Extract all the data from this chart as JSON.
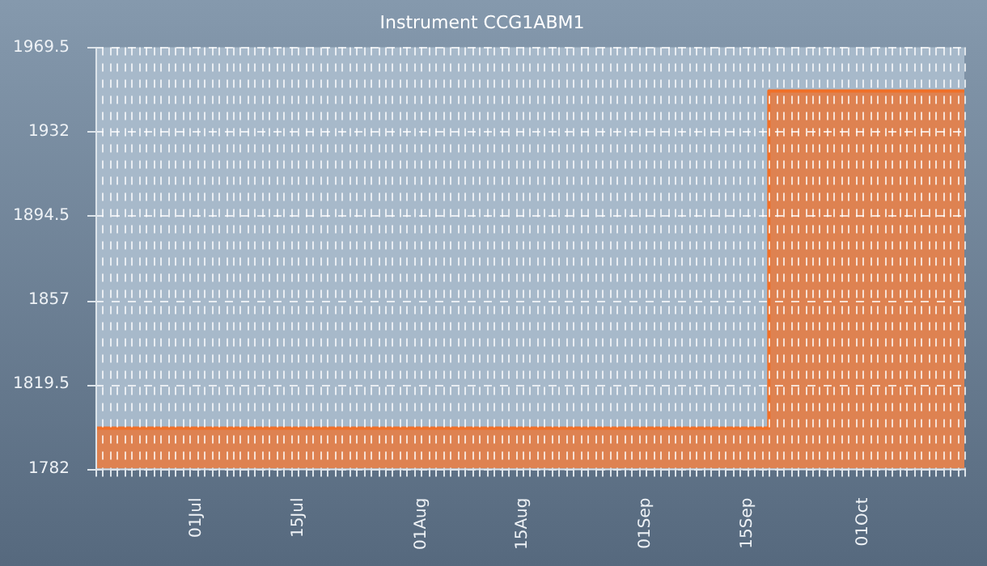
{
  "chart_data": {
    "type": "area",
    "title": "Instrument CCG1ABM1",
    "x": [
      "--06-17",
      "--09-18",
      "--09-18",
      "--10-15"
    ],
    "series": [
      {
        "color": "#f07028",
        "values": [
          1800,
          1800,
          1950,
          1950
        ]
      }
    ],
    "xlim": [
      "--06-17",
      "--10-15"
    ],
    "xticks": [
      {
        "value": "--07-01",
        "label": "01Jul"
      },
      {
        "value": "--07-15",
        "label": "15Jul"
      },
      {
        "value": "--08-01",
        "label": "01Aug"
      },
      {
        "value": "--08-15",
        "label": "15Aug"
      },
      {
        "value": "--09-01",
        "label": "01Sep"
      },
      {
        "value": "--09-15",
        "label": "15Sep"
      },
      {
        "value": "--10-01",
        "label": "01Oct"
      }
    ],
    "ylim": [
      1782,
      1969.5
    ],
    "yticks": [
      1782,
      1819.5,
      1857,
      1894.5,
      1932,
      1969.5
    ],
    "grid": true,
    "legend": false
  }
}
